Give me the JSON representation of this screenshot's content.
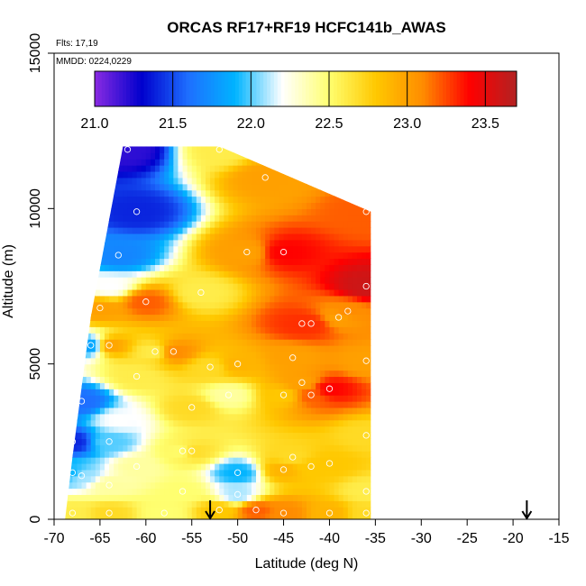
{
  "chart_data": {
    "type": "heatmap",
    "title": "ORCAS RF17+RF19 HCFC141b_AWAS",
    "annotations": {
      "flights": "Flts: 17,19",
      "dates": "MMDD: 0224,0229"
    },
    "xlabel": "Latitude (deg N)",
    "ylabel": "Altitude (m)",
    "xlim": [
      -70,
      -15
    ],
    "ylim": [
      0,
      15000
    ],
    "x_ticks": [
      "-70",
      "-65",
      "-60",
      "-55",
      "-50",
      "-45",
      "-40",
      "-35",
      "-30",
      "-25",
      "-20",
      "-15"
    ],
    "x_tick_values": [
      -70,
      -65,
      -60,
      -55,
      -50,
      -45,
      -40,
      -35,
      -30,
      -25,
      -20,
      -15
    ],
    "y_ticks": [
      "0",
      "5000",
      "10000",
      "15000"
    ],
    "y_tick_values": [
      0,
      5000,
      10000,
      15000
    ],
    "colorbar": {
      "range": [
        21.0,
        23.7
      ],
      "ticks": [
        "21.0",
        "21.5",
        "22.0",
        "22.5",
        "23.0",
        "23.5"
      ],
      "tick_values": [
        21.0,
        21.5,
        22.0,
        22.5,
        23.0,
        23.5
      ],
      "colors": [
        "#8a2be2",
        "#0000cd",
        "#1e6fff",
        "#00b4ff",
        "#ffffff",
        "#ffff70",
        "#ffc800",
        "#ff8c00",
        "#ff0000",
        "#b22222"
      ]
    },
    "arrows_latitude": [
      -53,
      -18.5
    ],
    "samples": [
      {
        "lat": -62,
        "alt": 11900,
        "v": 21.2
      },
      {
        "lat": -52,
        "alt": 11900,
        "v": 22.6
      },
      {
        "lat": -47,
        "alt": 11000,
        "v": 23.0
      },
      {
        "lat": -61,
        "alt": 9900,
        "v": 21.4
      },
      {
        "lat": -36,
        "alt": 9900,
        "v": 23.2
      },
      {
        "lat": -63,
        "alt": 8500,
        "v": 21.7
      },
      {
        "lat": -49,
        "alt": 8600,
        "v": 23.0
      },
      {
        "lat": -45,
        "alt": 8600,
        "v": 23.4
      },
      {
        "lat": -36,
        "alt": 7500,
        "v": 23.6
      },
      {
        "lat": -64,
        "alt": 7500,
        "v": 22.2
      },
      {
        "lat": -54,
        "alt": 7300,
        "v": 22.6
      },
      {
        "lat": -60,
        "alt": 7000,
        "v": 23.2
      },
      {
        "lat": -38,
        "alt": 6700,
        "v": 23.1
      },
      {
        "lat": -39,
        "alt": 6500,
        "v": 23.0
      },
      {
        "lat": -43,
        "alt": 6300,
        "v": 23.3
      },
      {
        "lat": -42,
        "alt": 6300,
        "v": 23.3
      },
      {
        "lat": -65,
        "alt": 6800,
        "v": 23.0
      },
      {
        "lat": -66,
        "alt": 5600,
        "v": 21.8
      },
      {
        "lat": -64,
        "alt": 5600,
        "v": 23.0
      },
      {
        "lat": -57,
        "alt": 5400,
        "v": 23.1
      },
      {
        "lat": -59,
        "alt": 5400,
        "v": 22.6
      },
      {
        "lat": -53,
        "alt": 4900,
        "v": 22.7
      },
      {
        "lat": -50,
        "alt": 5000,
        "v": 22.9
      },
      {
        "lat": -44,
        "alt": 5200,
        "v": 23.0
      },
      {
        "lat": -36,
        "alt": 5100,
        "v": 23.0
      },
      {
        "lat": -61,
        "alt": 4600,
        "v": 22.6
      },
      {
        "lat": -43,
        "alt": 4400,
        "v": 23.0
      },
      {
        "lat": -40,
        "alt": 4200,
        "v": 23.4
      },
      {
        "lat": -42,
        "alt": 4000,
        "v": 23.2
      },
      {
        "lat": -45,
        "alt": 4000,
        "v": 22.8
      },
      {
        "lat": -67,
        "alt": 3800,
        "v": 21.6
      },
      {
        "lat": -51,
        "alt": 4000,
        "v": 22.4
      },
      {
        "lat": -55,
        "alt": 3600,
        "v": 22.7
      },
      {
        "lat": -63,
        "alt": 3200,
        "v": 22.2
      },
      {
        "lat": -36,
        "alt": 2700,
        "v": 22.7
      },
      {
        "lat": -68,
        "alt": 2500,
        "v": 21.4
      },
      {
        "lat": -64,
        "alt": 2500,
        "v": 22.0
      },
      {
        "lat": -56,
        "alt": 2200,
        "v": 22.5
      },
      {
        "lat": -55,
        "alt": 2200,
        "v": 22.7
      },
      {
        "lat": -44,
        "alt": 2000,
        "v": 22.7
      },
      {
        "lat": -40,
        "alt": 1800,
        "v": 22.8
      },
      {
        "lat": -42,
        "alt": 1700,
        "v": 22.8
      },
      {
        "lat": -45,
        "alt": 1600,
        "v": 22.9
      },
      {
        "lat": -61,
        "alt": 1700,
        "v": 22.4
      },
      {
        "lat": -68,
        "alt": 1500,
        "v": 21.9
      },
      {
        "lat": -67,
        "alt": 1400,
        "v": 22.1
      },
      {
        "lat": -50,
        "alt": 1500,
        "v": 21.9
      },
      {
        "lat": -64,
        "alt": 1100,
        "v": 22.4
      },
      {
        "lat": -56,
        "alt": 900,
        "v": 22.5
      },
      {
        "lat": -50,
        "alt": 800,
        "v": 22.1
      },
      {
        "lat": -36,
        "alt": 900,
        "v": 22.6
      },
      {
        "lat": -68,
        "alt": 200,
        "v": 22.6
      },
      {
        "lat": -64,
        "alt": 200,
        "v": 22.7
      },
      {
        "lat": -58,
        "alt": 200,
        "v": 22.5
      },
      {
        "lat": -52,
        "alt": 300,
        "v": 22.8
      },
      {
        "lat": -48,
        "alt": 300,
        "v": 23.2
      },
      {
        "lat": -45,
        "alt": 200,
        "v": 23.1
      },
      {
        "lat": -40,
        "alt": 200,
        "v": 22.9
      },
      {
        "lat": -36,
        "alt": 200,
        "v": 22.7
      }
    ]
  }
}
